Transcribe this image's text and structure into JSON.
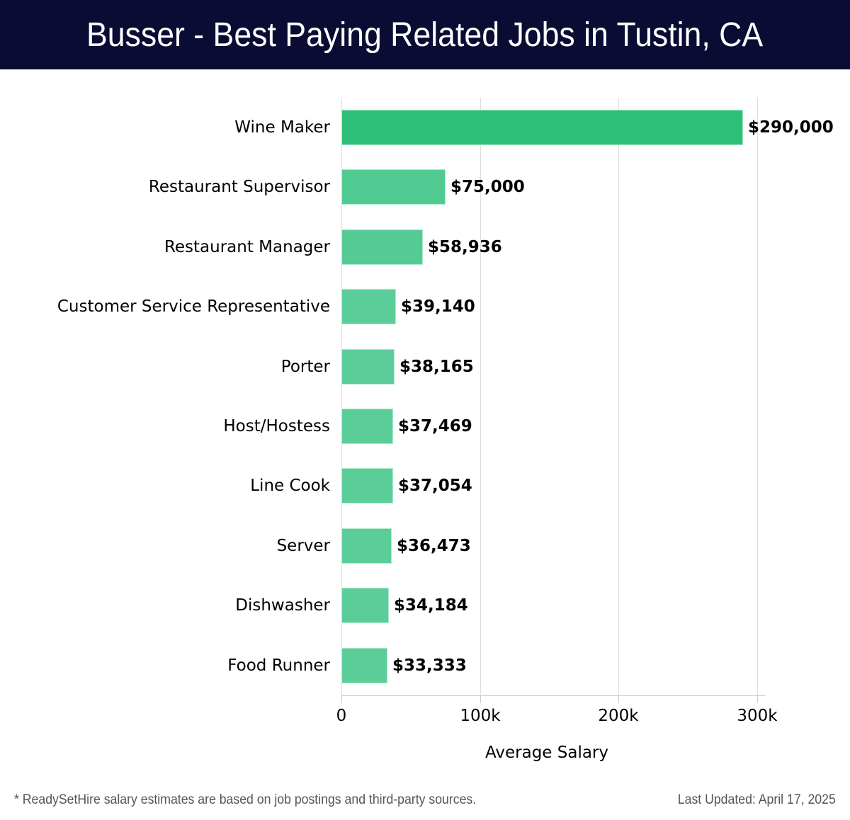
{
  "header": {
    "title": "Busser - Best Paying Related Jobs in Tustin, CA",
    "background": "#0b0c33"
  },
  "chart_data": {
    "type": "bar",
    "orientation": "horizontal",
    "title": "Busser - Best Paying Related Jobs in Tustin, CA",
    "xlabel": "Average Salary",
    "ylabel": "",
    "xlim": [
      0,
      300000
    ],
    "x_ticks": [
      0,
      100000,
      200000,
      300000
    ],
    "x_tick_labels": [
      "0",
      "100k",
      "200k",
      "300k"
    ],
    "grid": "vertical",
    "legend": "none",
    "categories": [
      "Wine Maker",
      "Restaurant Supervisor",
      "Restaurant Manager",
      "Customer Service Representative",
      "Porter",
      "Host/Hostess",
      "Line Cook",
      "Server",
      "Dishwasher",
      "Food Runner"
    ],
    "values": [
      290000,
      75000,
      58936,
      39140,
      38165,
      37469,
      37054,
      36473,
      34184,
      33333
    ],
    "value_labels": [
      "$290,000",
      "$75,000",
      "$58,936",
      "$39,140",
      "$38,165",
      "$37,469",
      "$37,054",
      "$36,473",
      "$34,184",
      "$33,333"
    ],
    "colors": [
      "#2ebf78",
      "#52cb93",
      "#55cc95",
      "#5acd98",
      "#5acd98",
      "#5acd98",
      "#5acd98",
      "#5acd98",
      "#5acd98",
      "#5acd98"
    ]
  },
  "footer": {
    "note": "* ReadySetHire salary estimates are based on job postings and third-party sources.",
    "updated": "Last Updated: April 17, 2025"
  }
}
